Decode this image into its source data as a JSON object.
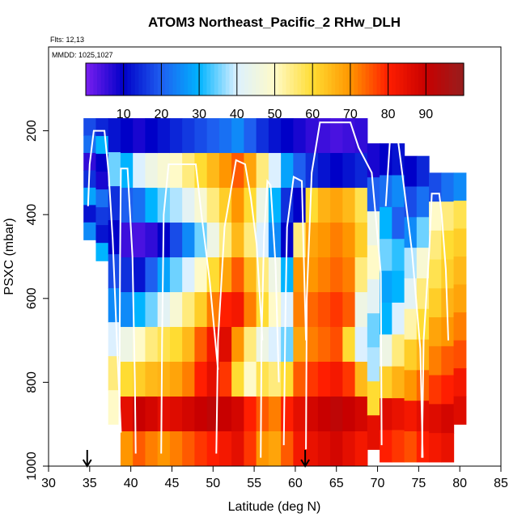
{
  "chart_data": {
    "type": "heatmap",
    "title": "ATOM3 Northeast_Pacific_2 RHw_DLH",
    "flights_label": "Flts: 12,13",
    "mmdd_label": "MMDD: 1025,1027",
    "xlabel": "Latitude (deg N)",
    "ylabel": "PSXC (mbar)",
    "xlim": [
      30,
      85
    ],
    "ylim": [
      1000,
      0
    ],
    "x_ticks": [
      30,
      35,
      40,
      45,
      50,
      55,
      60,
      65,
      70,
      75,
      80,
      85
    ],
    "y_ticks": [
      200,
      400,
      600,
      800,
      1000
    ],
    "colorbar": {
      "range": [
        0,
        100
      ],
      "ticks": [
        10,
        20,
        30,
        40,
        50,
        60,
        70,
        80,
        90
      ],
      "stops": [
        "#7a1ef0",
        "#0000c8",
        "#1e5ff0",
        "#00b4ff",
        "#dcf0ff",
        "#fffac8",
        "#ffdc32",
        "#ff9600",
        "#ff1e00",
        "#c80000",
        "#961e1e"
      ]
    },
    "arrows_latitude": [
      34.7,
      61.2
    ],
    "columns": [
      {
        "lat": 35.0,
        "top": 170,
        "bottom": 460,
        "values": [
          18,
          22,
          6,
          15,
          28,
          12,
          25
        ]
      },
      {
        "lat": 36.5,
        "top": 170,
        "bottom": 510,
        "values": [
          14,
          30,
          10,
          8,
          22,
          16,
          12,
          30
        ]
      },
      {
        "lat": 38.0,
        "top": 170,
        "bottom": 900,
        "values": [
          12,
          35,
          15,
          10,
          18,
          25,
          40,
          55,
          50
        ]
      },
      {
        "lat": 39.5,
        "top": 170,
        "bottom": 1000,
        "values": [
          10,
          30,
          20,
          5,
          15,
          25,
          45,
          60,
          85,
          70
        ]
      },
      {
        "lat": 41.0,
        "top": 170,
        "bottom": 1000,
        "values": [
          8,
          40,
          22,
          4,
          12,
          30,
          50,
          62,
          90,
          75
        ]
      },
      {
        "lat": 42.5,
        "top": 170,
        "bottom": 1000,
        "values": [
          10,
          45,
          30,
          6,
          20,
          35,
          55,
          65,
          88,
          72
        ]
      },
      {
        "lat": 44.0,
        "top": 170,
        "bottom": 1000,
        "values": [
          12,
          48,
          35,
          10,
          28,
          42,
          58,
          66,
          85,
          70
        ]
      },
      {
        "lat": 45.5,
        "top": 170,
        "bottom": 1000,
        "values": [
          14,
          50,
          38,
          18,
          35,
          48,
          60,
          68,
          86,
          72
        ]
      },
      {
        "lat": 47.0,
        "top": 170,
        "bottom": 1000,
        "values": [
          16,
          55,
          42,
          25,
          40,
          55,
          65,
          72,
          88,
          75
        ]
      },
      {
        "lat": 48.5,
        "top": 170,
        "bottom": 1000,
        "values": [
          18,
          60,
          48,
          35,
          50,
          62,
          75,
          80,
          90,
          78
        ]
      },
      {
        "lat": 50.0,
        "top": 170,
        "bottom": 1000,
        "values": [
          20,
          65,
          55,
          45,
          60,
          72,
          82,
          85,
          92,
          80
        ]
      },
      {
        "lat": 51.5,
        "top": 170,
        "bottom": 1000,
        "values": [
          22,
          70,
          62,
          55,
          68,
          80,
          86,
          78,
          90,
          82
        ]
      },
      {
        "lat": 53.0,
        "top": 170,
        "bottom": 1000,
        "values": [
          25,
          75,
          70,
          65,
          75,
          82,
          70,
          60,
          88,
          85
        ]
      },
      {
        "lat": 54.5,
        "top": 170,
        "bottom": 1000,
        "values": [
          20,
          68,
          60,
          55,
          65,
          72,
          55,
          50,
          80,
          78
        ]
      },
      {
        "lat": 56.0,
        "top": 170,
        "bottom": 1000,
        "values": [
          15,
          55,
          45,
          40,
          55,
          60,
          45,
          58,
          75,
          70
        ]
      },
      {
        "lat": 57.5,
        "top": 170,
        "bottom": 1000,
        "values": [
          12,
          40,
          30,
          25,
          45,
          50,
          40,
          55,
          72,
          68
        ]
      },
      {
        "lat": 59.0,
        "top": 170,
        "bottom": 1000,
        "values": [
          10,
          28,
          15,
          10,
          30,
          40,
          35,
          60,
          80,
          75
        ]
      },
      {
        "lat": 60.5,
        "top": 170,
        "bottom": 1000,
        "values": [
          8,
          20,
          10,
          55,
          70,
          72,
          68,
          75,
          85,
          82
        ]
      },
      {
        "lat": 62.0,
        "top": 170,
        "bottom": 1000,
        "values": [
          6,
          15,
          60,
          68,
          70,
          74,
          72,
          78,
          88,
          84
        ]
      },
      {
        "lat": 63.5,
        "top": 170,
        "bottom": 1000,
        "values": [
          5,
          12,
          66,
          70,
          72,
          76,
          74,
          80,
          90,
          86
        ]
      },
      {
        "lat": 65.0,
        "top": 170,
        "bottom": 1000,
        "values": [
          4,
          10,
          68,
          72,
          74,
          78,
          76,
          82,
          92,
          88
        ]
      },
      {
        "lat": 66.5,
        "top": 170,
        "bottom": 1000,
        "values": [
          5,
          12,
          65,
          70,
          72,
          75,
          60,
          78,
          90,
          85
        ]
      },
      {
        "lat": 68.0,
        "top": 170,
        "bottom": 1000,
        "values": [
          6,
          14,
          58,
          62,
          55,
          45,
          40,
          65,
          88,
          82
        ]
      },
      {
        "lat": 69.5,
        "top": 230,
        "bottom": 960,
        "values": [
          8,
          20,
          45,
          50,
          42,
          35,
          38,
          60,
          85
        ]
      },
      {
        "lat": 71.0,
        "top": 230,
        "bottom": 990,
        "values": [
          10,
          22,
          30,
          35,
          28,
          30,
          45,
          62,
          86,
          80
        ]
      },
      {
        "lat": 72.5,
        "top": 230,
        "bottom": 990,
        "values": [
          12,
          25,
          20,
          32,
          30,
          40,
          55,
          66,
          84,
          78
        ]
      },
      {
        "lat": 74.0,
        "top": 260,
        "bottom": 990,
        "values": [
          10,
          18,
          25,
          38,
          42,
          52,
          62,
          70,
          82,
          76
        ]
      },
      {
        "lat": 75.5,
        "top": 260,
        "bottom": 990,
        "values": [
          14,
          22,
          35,
          48,
          55,
          60,
          66,
          74,
          85,
          80
        ]
      },
      {
        "lat": 77.0,
        "top": 300,
        "bottom": 990,
        "values": [
          18,
          50,
          55,
          58,
          62,
          68,
          72,
          78,
          86,
          82
        ]
      },
      {
        "lat": 78.5,
        "top": 300,
        "bottom": 990,
        "values": [
          22,
          55,
          60,
          62,
          66,
          70,
          75,
          80,
          88,
          84
        ]
      },
      {
        "lat": 80.0,
        "top": 300,
        "bottom": 900,
        "values": [
          25,
          58,
          62,
          65,
          68,
          72,
          76,
          82,
          86
        ]
      }
    ],
    "profiles": [
      {
        "name": "profile-1",
        "points": [
          [
            34.8,
            380
          ],
          [
            35.0,
            280
          ],
          [
            35.5,
            200
          ],
          [
            36.8,
            200
          ],
          [
            37.3,
            300
          ],
          [
            37.8,
            460
          ],
          [
            38.3,
            700
          ],
          [
            38.8,
            920
          ]
        ]
      },
      {
        "name": "profile-2",
        "points": [
          [
            38.6,
            950
          ],
          [
            38.7,
            500
          ],
          [
            38.8,
            290
          ],
          [
            39.6,
            290
          ],
          [
            40.2,
            500
          ],
          [
            40.5,
            800
          ],
          [
            40.6,
            970
          ]
        ]
      },
      {
        "name": "profile-3",
        "points": [
          [
            43.7,
            970
          ],
          [
            43.8,
            700
          ],
          [
            44.0,
            400
          ],
          [
            44.6,
            280
          ],
          [
            47.9,
            280
          ],
          [
            48.6,
            400
          ],
          [
            49.6,
            560
          ],
          [
            50.6,
            770
          ]
        ]
      },
      {
        "name": "profile-4",
        "points": [
          [
            50.4,
            970
          ],
          [
            50.6,
            700
          ],
          [
            51.4,
            430
          ],
          [
            52.8,
            270
          ],
          [
            53.9,
            280
          ],
          [
            54.6,
            360
          ],
          [
            55.3,
            470
          ],
          [
            56.0,
            700
          ]
        ]
      },
      {
        "name": "profile-5",
        "points": [
          [
            55.8,
            980
          ],
          [
            55.9,
            700
          ],
          [
            56.2,
            450
          ],
          [
            56.6,
            320
          ],
          [
            57.0,
            330
          ],
          [
            57.6,
            520
          ],
          [
            58.0,
            800
          ]
        ]
      },
      {
        "name": "profile-6",
        "points": [
          [
            58.6,
            950
          ],
          [
            58.8,
            640
          ],
          [
            59.0,
            430
          ],
          [
            59.8,
            310
          ],
          [
            60.8,
            320
          ],
          [
            61.0,
            480
          ],
          [
            61.3,
            700
          ]
        ]
      },
      {
        "name": "profile-7",
        "points": [
          [
            61.3,
            960
          ],
          [
            61.4,
            600
          ],
          [
            62.0,
            300
          ],
          [
            63.0,
            180
          ],
          [
            66.7,
            180
          ],
          [
            67.7,
            240
          ],
          [
            69.3,
            300
          ],
          [
            70.4,
            540
          ],
          [
            70.5,
            950
          ]
        ]
      },
      {
        "name": "profile-8",
        "points": [
          [
            71.0,
            380
          ],
          [
            71.5,
            225
          ],
          [
            72.5,
            225
          ],
          [
            73.0,
            300
          ],
          [
            74.2,
            490
          ],
          [
            75.2,
            720
          ],
          [
            75.5,
            980
          ]
        ]
      },
      {
        "name": "profile-9",
        "points": [
          [
            75.4,
            980
          ],
          [
            75.6,
            700
          ],
          [
            76.3,
            480
          ],
          [
            76.6,
            350
          ],
          [
            77.5,
            350
          ],
          [
            77.8,
            400
          ],
          [
            78.3,
            530
          ],
          [
            78.6,
            700
          ]
        ]
      }
    ]
  }
}
